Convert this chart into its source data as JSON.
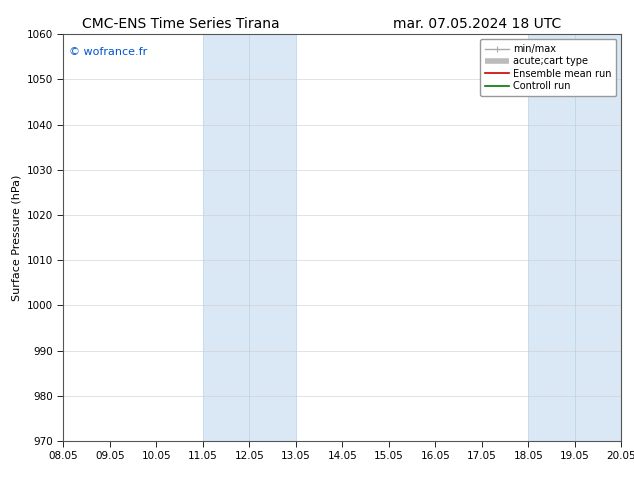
{
  "title_left": "CMC-ENS Time Series Tirana",
  "title_right": "mar. 07.05.2024 18 UTC",
  "ylabel": "Surface Pressure (hPa)",
  "ylim": [
    970,
    1060
  ],
  "yticks": [
    970,
    980,
    990,
    1000,
    1010,
    1020,
    1030,
    1040,
    1050,
    1060
  ],
  "xtick_labels": [
    "08.05",
    "09.05",
    "10.05",
    "11.05",
    "12.05",
    "13.05",
    "14.05",
    "15.05",
    "16.05",
    "17.05",
    "18.05",
    "19.05",
    "20.05"
  ],
  "xtick_positions": [
    0,
    1,
    2,
    3,
    4,
    5,
    6,
    7,
    8,
    9,
    10,
    11,
    12
  ],
  "xlim": [
    0,
    12
  ],
  "shaded_bands": [
    {
      "x_start": 3,
      "x_end": 4,
      "color": "#dae8f5"
    },
    {
      "x_start": 4,
      "x_end": 5,
      "color": "#dae8f5"
    },
    {
      "x_start": 10,
      "x_end": 11,
      "color": "#dae8f5"
    },
    {
      "x_start": 11,
      "x_end": 12,
      "color": "#dae8f5"
    }
  ],
  "band_edge_color": "#b8d4e8",
  "watermark": "© wofrance.fr",
  "watermark_color": "#0055cc",
  "watermark_fontsize": 8,
  "legend_entries": [
    {
      "label": "min/max",
      "color": "#aaaaaa",
      "lw": 1.0
    },
    {
      "label": "acute;cart type",
      "color": "#bbbbbb",
      "lw": 4.0
    },
    {
      "label": "Ensemble mean run",
      "color": "#cc0000",
      "lw": 1.2
    },
    {
      "label": "Controll run",
      "color": "#007700",
      "lw": 1.2
    }
  ],
  "bg_color": "#ffffff",
  "plot_bg_color": "#ffffff",
  "grid_color": "#cccccc",
  "spine_color": "#555555",
  "title_fontsize": 10,
  "label_fontsize": 8,
  "tick_fontsize": 7.5,
  "legend_fontsize": 7
}
